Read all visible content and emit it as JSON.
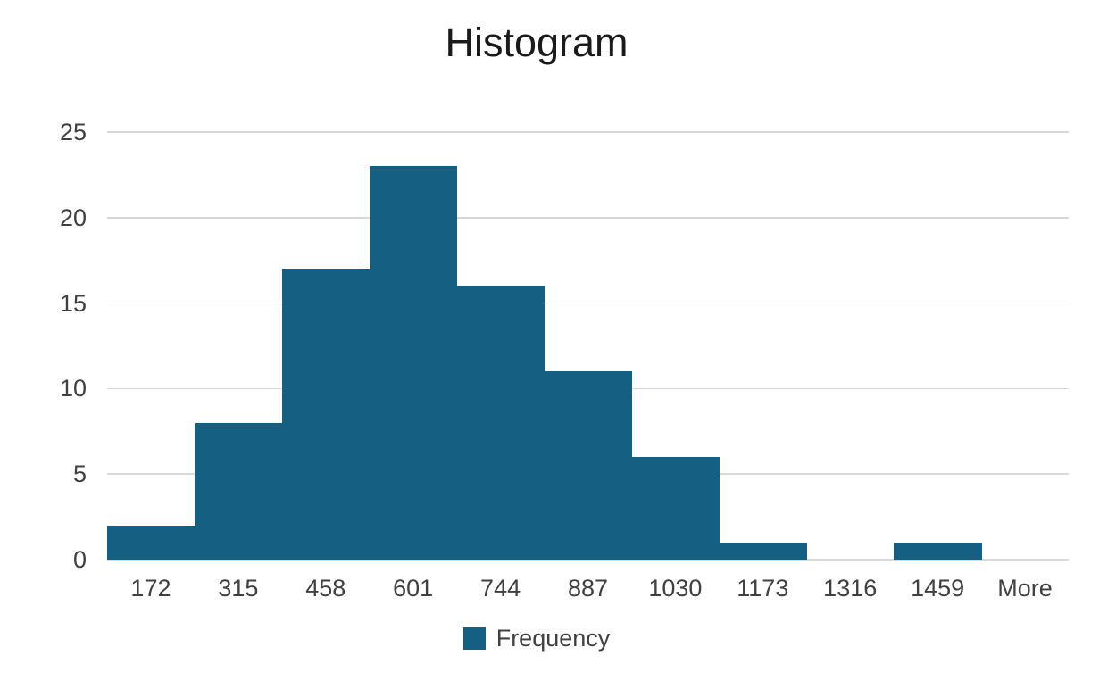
{
  "chart_data": {
    "type": "bar",
    "title": "Histogram",
    "categories": [
      "172",
      "315",
      "458",
      "601",
      "744",
      "887",
      "1030",
      "1173",
      "1316",
      "1459",
      "More"
    ],
    "values": [
      2,
      8,
      17,
      23,
      16,
      11,
      6,
      1,
      0,
      1,
      0
    ],
    "series_name": "Frequency",
    "xlabel": "",
    "ylabel": "",
    "ylim": [
      0,
      25
    ],
    "y_ticks": [
      0,
      5,
      10,
      15,
      20,
      25
    ],
    "grid": true,
    "gap_width_percent": 0,
    "legend_position": "bottom",
    "bar_color": "#156082",
    "gridline_color": "#d9d9d9",
    "text_color": "#404040",
    "title_color": "#1a1a1a"
  }
}
